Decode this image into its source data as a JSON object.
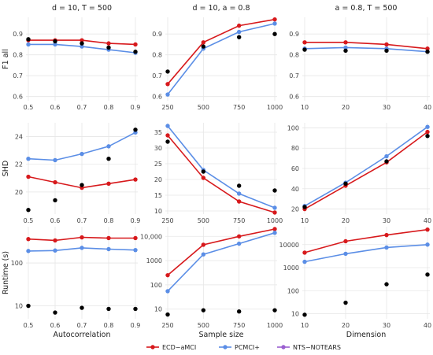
{
  "colors": {
    "ECD-aMCI": "#d7191c",
    "PCMCI+": "#5b8ee6",
    "NTS-NOTEARS": "#9a5fd0",
    "grid": "#e6e6e6"
  },
  "column_titles": [
    "d = 10, T = 500",
    "d = 10, a = 0.8",
    "a = 0.8, T = 500"
  ],
  "row_labels": [
    "F1 all",
    "SHD",
    "Runtime (s)"
  ],
  "x_labels": [
    "Autocorrelation",
    "Sample size",
    "Dimension"
  ],
  "legend": [
    "ECD−aMCI",
    "PCMCI+",
    "NTS−NOTEARS"
  ],
  "chart_data": [
    {
      "type": "line",
      "row": 0,
      "col": 0,
      "x": [
        0.5,
        0.6,
        0.7,
        0.8,
        0.9
      ],
      "xticks": [
        "0.5",
        "0.6",
        "0.7",
        "0.8",
        "0.9"
      ],
      "ylim": [
        0.58,
        0.98
      ],
      "yticks": [
        0.6,
        0.7,
        0.8,
        0.9
      ],
      "ytick_labels": [
        "0.6",
        "0.7",
        "0.8",
        "0.9"
      ],
      "title": "d = 10, T = 500",
      "ylabel": "F1 all",
      "xlabel": "",
      "series": [
        {
          "name": "ECD−aMCI",
          "values": [
            0.87,
            0.87,
            0.87,
            0.855,
            0.85
          ]
        },
        {
          "name": "PCMCI+",
          "values": [
            0.85,
            0.85,
            0.84,
            0.825,
            0.81
          ]
        },
        {
          "name": "NTS−NOTEARS",
          "values": [
            0.875,
            0.865,
            0.855,
            0.835,
            0.815
          ]
        }
      ]
    },
    {
      "type": "line",
      "row": 0,
      "col": 1,
      "x": [
        250,
        500,
        750,
        1000
      ],
      "xticks": [
        "250",
        "500",
        "750",
        "1000"
      ],
      "ylim": [
        0.58,
        0.98
      ],
      "yticks": [
        0.6,
        0.7,
        0.8,
        0.9
      ],
      "ytick_labels": [
        "0.6",
        "0.7",
        "0.8",
        "0.9"
      ],
      "title": "d = 10, a = 0.8",
      "ylabel": "",
      "xlabel": "",
      "series": [
        {
          "name": "ECD−aMCI",
          "values": [
            0.66,
            0.86,
            0.94,
            0.97
          ]
        },
        {
          "name": "PCMCI+",
          "values": [
            0.61,
            0.83,
            0.91,
            0.95
          ]
        },
        {
          "name": "NTS−NOTEARS",
          "values": [
            0.72,
            0.84,
            0.885,
            0.9
          ]
        }
      ]
    },
    {
      "type": "line",
      "row": 0,
      "col": 2,
      "x": [
        10,
        20,
        30,
        40
      ],
      "xticks": [
        "10",
        "20",
        "30",
        "40"
      ],
      "ylim": [
        0.58,
        0.98
      ],
      "yticks": [
        0.6,
        0.7,
        0.8,
        0.9
      ],
      "ytick_labels": [
        "0.6",
        "0.7",
        "0.8",
        "0.9"
      ],
      "title": "a = 0.8, T = 500",
      "ylabel": "",
      "xlabel": "",
      "series": [
        {
          "name": "ECD−aMCI",
          "values": [
            0.86,
            0.86,
            0.85,
            0.83
          ]
        },
        {
          "name": "PCMCI+",
          "values": [
            0.83,
            0.835,
            0.83,
            0.815
          ]
        },
        {
          "name": "NTS−NOTEARS",
          "values": [
            0.825,
            0.82,
            0.82,
            0.815
          ]
        }
      ]
    },
    {
      "type": "line",
      "row": 1,
      "col": 0,
      "x": [
        0.5,
        0.6,
        0.7,
        0.8,
        0.9
      ],
      "xticks": [
        "0.5",
        "0.6",
        "0.7",
        "0.8",
        "0.9"
      ],
      "ylim": [
        18.4,
        25
      ],
      "yticks": [
        20,
        22,
        24
      ],
      "ytick_labels": [
        "20",
        "22",
        "24"
      ],
      "title": "",
      "ylabel": "SHD",
      "xlabel": "",
      "series": [
        {
          "name": "ECD−aMCI",
          "values": [
            21.1,
            20.7,
            20.3,
            20.6,
            20.9
          ]
        },
        {
          "name": "PCMCI+",
          "values": [
            22.4,
            22.3,
            22.75,
            23.3,
            24.3
          ]
        },
        {
          "name": "NTS−NOTEARS",
          "values": [
            18.7,
            19.4,
            20.5,
            22.4,
            24.5
          ]
        }
      ]
    },
    {
      "type": "line",
      "row": 1,
      "col": 1,
      "x": [
        250,
        500,
        750,
        1000
      ],
      "xticks": [
        "250",
        "500",
        "750",
        "1000"
      ],
      "ylim": [
        9,
        38
      ],
      "yticks": [
        10,
        15,
        20,
        25,
        30,
        35
      ],
      "ytick_labels": [
        "10",
        "15",
        "20",
        "25",
        "30",
        "35"
      ],
      "title": "",
      "ylabel": "",
      "xlabel": "",
      "series": [
        {
          "name": "ECD−aMCI",
          "values": [
            34,
            20.5,
            13,
            9.5
          ]
        },
        {
          "name": "PCMCI+",
          "values": [
            37,
            23,
            15.5,
            11
          ]
        },
        {
          "name": "NTS−NOTEARS",
          "values": [
            32,
            22.5,
            18,
            16.5
          ]
        }
      ]
    },
    {
      "type": "line",
      "row": 1,
      "col": 2,
      "x": [
        10,
        20,
        30,
        40
      ],
      "xticks": [
        "10",
        "20",
        "30",
        "40"
      ],
      "ylim": [
        15,
        105
      ],
      "yticks": [
        20,
        40,
        60,
        80,
        100
      ],
      "ytick_labels": [
        "20",
        "40",
        "60",
        "80",
        "100"
      ],
      "title": "",
      "ylabel": "",
      "xlabel": "",
      "series": [
        {
          "name": "ECD−aMCI",
          "values": [
            20,
            43,
            66,
            96
          ]
        },
        {
          "name": "PCMCI+",
          "values": [
            23,
            46,
            72,
            101
          ]
        },
        {
          "name": "NTS−NOTEARS",
          "values": [
            22,
            45,
            67,
            92
          ]
        }
      ]
    },
    {
      "type": "line",
      "row": 2,
      "col": 0,
      "x": [
        0.5,
        0.6,
        0.7,
        0.8,
        0.9
      ],
      "xticks": [
        "0.5",
        "0.6",
        "0.7",
        "0.8",
        "0.9"
      ],
      "ylim": [
        5,
        700
      ],
      "log": true,
      "yticks": [
        10,
        100
      ],
      "ytick_labels": [
        "10",
        "100"
      ],
      "title": "",
      "ylabel": "Runtime (s)",
      "xlabel": "Autocorrelation",
      "series": [
        {
          "name": "ECD−aMCI",
          "values": [
            360,
            335,
            395,
            380,
            380
          ]
        },
        {
          "name": "PCMCI+",
          "values": [
            190,
            195,
            225,
            210,
            200
          ]
        },
        {
          "name": "NTS−NOTEARS",
          "values": [
            10,
            7,
            9,
            8.5,
            8.5
          ]
        }
      ]
    },
    {
      "type": "line",
      "row": 2,
      "col": 1,
      "x": [
        250,
        500,
        750,
        1000
      ],
      "xticks": [
        "250",
        "500",
        "750",
        "1000"
      ],
      "ylim": [
        4,
        25000
      ],
      "log": true,
      "yticks": [
        10,
        100,
        1000,
        10000
      ],
      "ytick_labels": [
        "10",
        "100",
        "1000",
        "10,000"
      ],
      "title": "",
      "ylabel": "",
      "xlabel": "Sample size",
      "series": [
        {
          "name": "ECD−aMCI",
          "values": [
            250,
            4500,
            10000,
            20000
          ]
        },
        {
          "name": "PCMCI+",
          "values": [
            55,
            1800,
            5000,
            14000
          ]
        },
        {
          "name": "NTS−NOTEARS",
          "values": [
            6,
            9,
            8,
            9
          ]
        }
      ]
    },
    {
      "type": "line",
      "row": 2,
      "col": 2,
      "x": [
        10,
        20,
        30,
        40
      ],
      "xticks": [
        "10",
        "20",
        "30",
        "40"
      ],
      "ylim": [
        6,
        60000
      ],
      "log": true,
      "yticks": [
        10,
        100,
        1000,
        10000
      ],
      "ytick_labels": [
        "10",
        "100",
        "1000",
        "10000"
      ],
      "title": "",
      "ylabel": "",
      "xlabel": "Dimension",
      "series": [
        {
          "name": "ECD−aMCI",
          "values": [
            4500,
            14000,
            26000,
            45000
          ]
        },
        {
          "name": "PCMCI+",
          "values": [
            1800,
            4000,
            7500,
            10000
          ]
        },
        {
          "name": "NTS−NOTEARS",
          "values": [
            9,
            30,
            190,
            500
          ]
        }
      ]
    }
  ]
}
